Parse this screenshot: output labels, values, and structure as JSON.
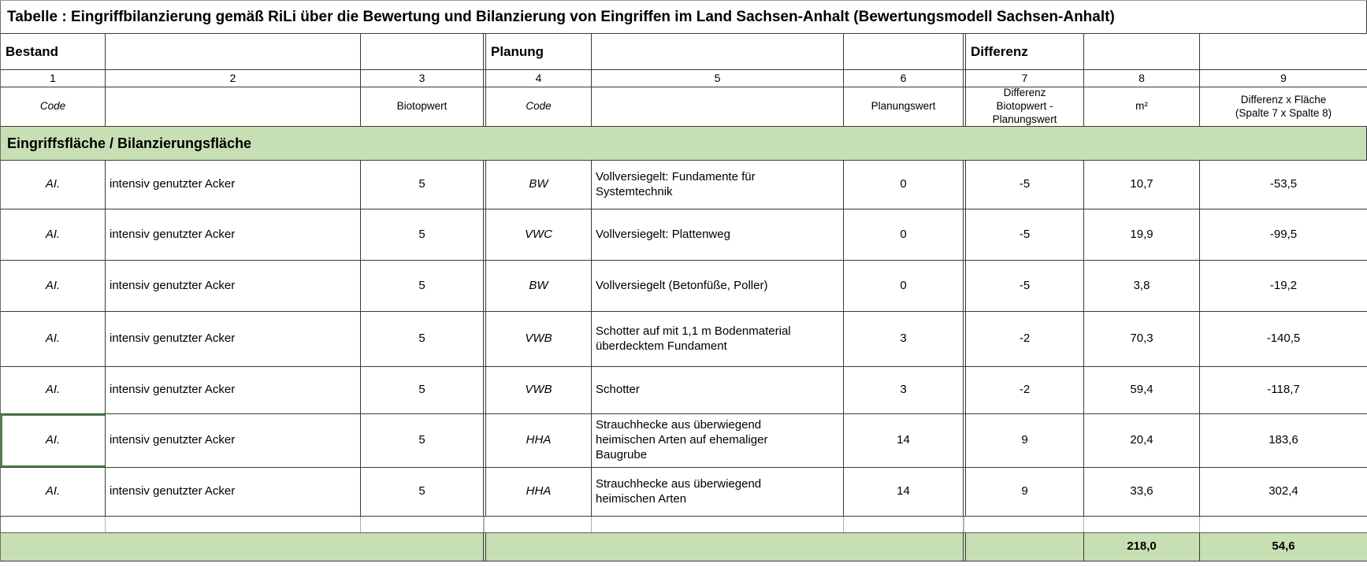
{
  "title": "Tabelle : Eingriffbilanzierung gemäß RiLi über die Bewertung und Bilanzierung von Eingriffen im Land Sachsen-Anhalt (Bewertungsmodell Sachsen-Anhalt)",
  "bands": {
    "bestand": "Bestand",
    "planung": "Planung",
    "differenz": "Differenz"
  },
  "column_numbers": [
    "1",
    "2",
    "3",
    "4",
    "5",
    "6",
    "7",
    "8",
    "9"
  ],
  "column_headers": {
    "bestand_code": "Code",
    "bestand_description": "",
    "biotopwert": "Biotopwert",
    "planung_code": "Code",
    "planung_description": "",
    "planungswert": "Planungswert",
    "differenz": "Differenz\nBiotopwert -\nPlanungswert",
    "flaeche": "m²",
    "differenz_x_flaeche": "Differenz x Fläche\n(Spalte 7 x Spalte 8)"
  },
  "section_header": "Eingriffsfläche / Bilanzierungsfläche",
  "rows": [
    {
      "bestand_code": "AI.",
      "bestand_description": "intensiv genutzter Acker",
      "biotopwert": "5",
      "planung_code": "BW",
      "planung_description": "Vollversiegelt: Fundamente für\nSystemtechnik",
      "planungswert": "0",
      "differenz": "-5",
      "flaeche_m2": "10,7",
      "differenz_x_flaeche": "-53,5"
    },
    {
      "bestand_code": "AI.",
      "bestand_description": "intensiv genutzter Acker",
      "biotopwert": "5",
      "planung_code": "VWC",
      "planung_description": "Vollversiegelt: Plattenweg",
      "planungswert": "0",
      "differenz": "-5",
      "flaeche_m2": "19,9",
      "differenz_x_flaeche": "-99,5"
    },
    {
      "bestand_code": "AI.",
      "bestand_description": "intensiv genutzter Acker",
      "biotopwert": "5",
      "planung_code": "BW",
      "planung_description": "Vollversiegelt (Betonfüße, Poller)",
      "planungswert": "0",
      "differenz": "-5",
      "flaeche_m2": "3,8",
      "differenz_x_flaeche": "-19,2"
    },
    {
      "bestand_code": "AI.",
      "bestand_description": "intensiv genutzter Acker",
      "biotopwert": "5",
      "planung_code": "VWB",
      "planung_description": "Schotter auf mit 1,1 m Bodenmaterial\nüberdecktem Fundament",
      "planungswert": "3",
      "differenz": "-2",
      "flaeche_m2": "70,3",
      "differenz_x_flaeche": "-140,5"
    },
    {
      "bestand_code": "AI.",
      "bestand_description": "intensiv genutzter Acker",
      "biotopwert": "5",
      "planung_code": "VWB",
      "planung_description": "Schotter",
      "planungswert": "3",
      "differenz": "-2",
      "flaeche_m2": "59,4",
      "differenz_x_flaeche": "-118,7"
    },
    {
      "bestand_code": "AI.",
      "bestand_description": "intensiv genutzter Acker",
      "biotopwert": "5",
      "planung_code": "HHA",
      "planung_description": "Strauchhecke aus überwiegend\nheimischen Arten auf ehemaliger\nBaugrube",
      "planungswert": "14",
      "differenz": "9",
      "flaeche_m2": "20,4",
      "differenz_x_flaeche": "183,6"
    },
    {
      "bestand_code": "AI.",
      "bestand_description": "intensiv genutzter Acker",
      "biotopwert": "5",
      "planung_code": "HHA",
      "planung_description": "Strauchhecke aus überwiegend\nheimischen Arten",
      "planungswert": "14",
      "differenz": "9",
      "flaeche_m2": "33,6",
      "differenz_x_flaeche": "302,4"
    }
  ],
  "totals": {
    "flaeche_sum": "218,0",
    "differenz_x_flaeche_sum": "54,6"
  },
  "colors": {
    "section_green": "#c6e0b4",
    "grid_line": "#3a3a3a",
    "highlight_border_green": "#43853f"
  }
}
